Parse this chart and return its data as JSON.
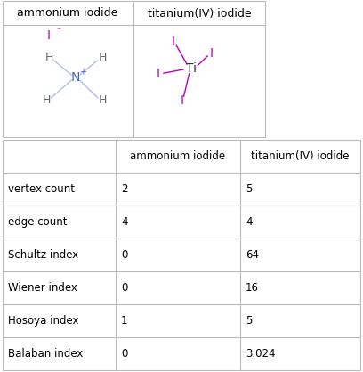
{
  "col1_header": "ammonium iodide",
  "col2_header": "titanium(IV) iodide",
  "row_labels": [
    "vertex count",
    "edge count",
    "Schultz index",
    "Wiener index",
    "Hosoya index",
    "Balaban index"
  ],
  "col1_values": [
    "2",
    "4",
    "0",
    "0",
    "1",
    "0"
  ],
  "col2_values": [
    "5",
    "4",
    "64",
    "16",
    "5",
    "3.024"
  ],
  "border_color": "#bbbbbb",
  "text_color": "#000000",
  "iodide_color": "#bb00bb",
  "nitrogen_color": "#4466cc",
  "bond_color": "#aabbdd",
  "h_color": "#666666",
  "ti_color": "#333333",
  "ti_bond_color": "#bb00bb",
  "fig_width": 4.08,
  "fig_height": 4.18,
  "dpi": 100
}
